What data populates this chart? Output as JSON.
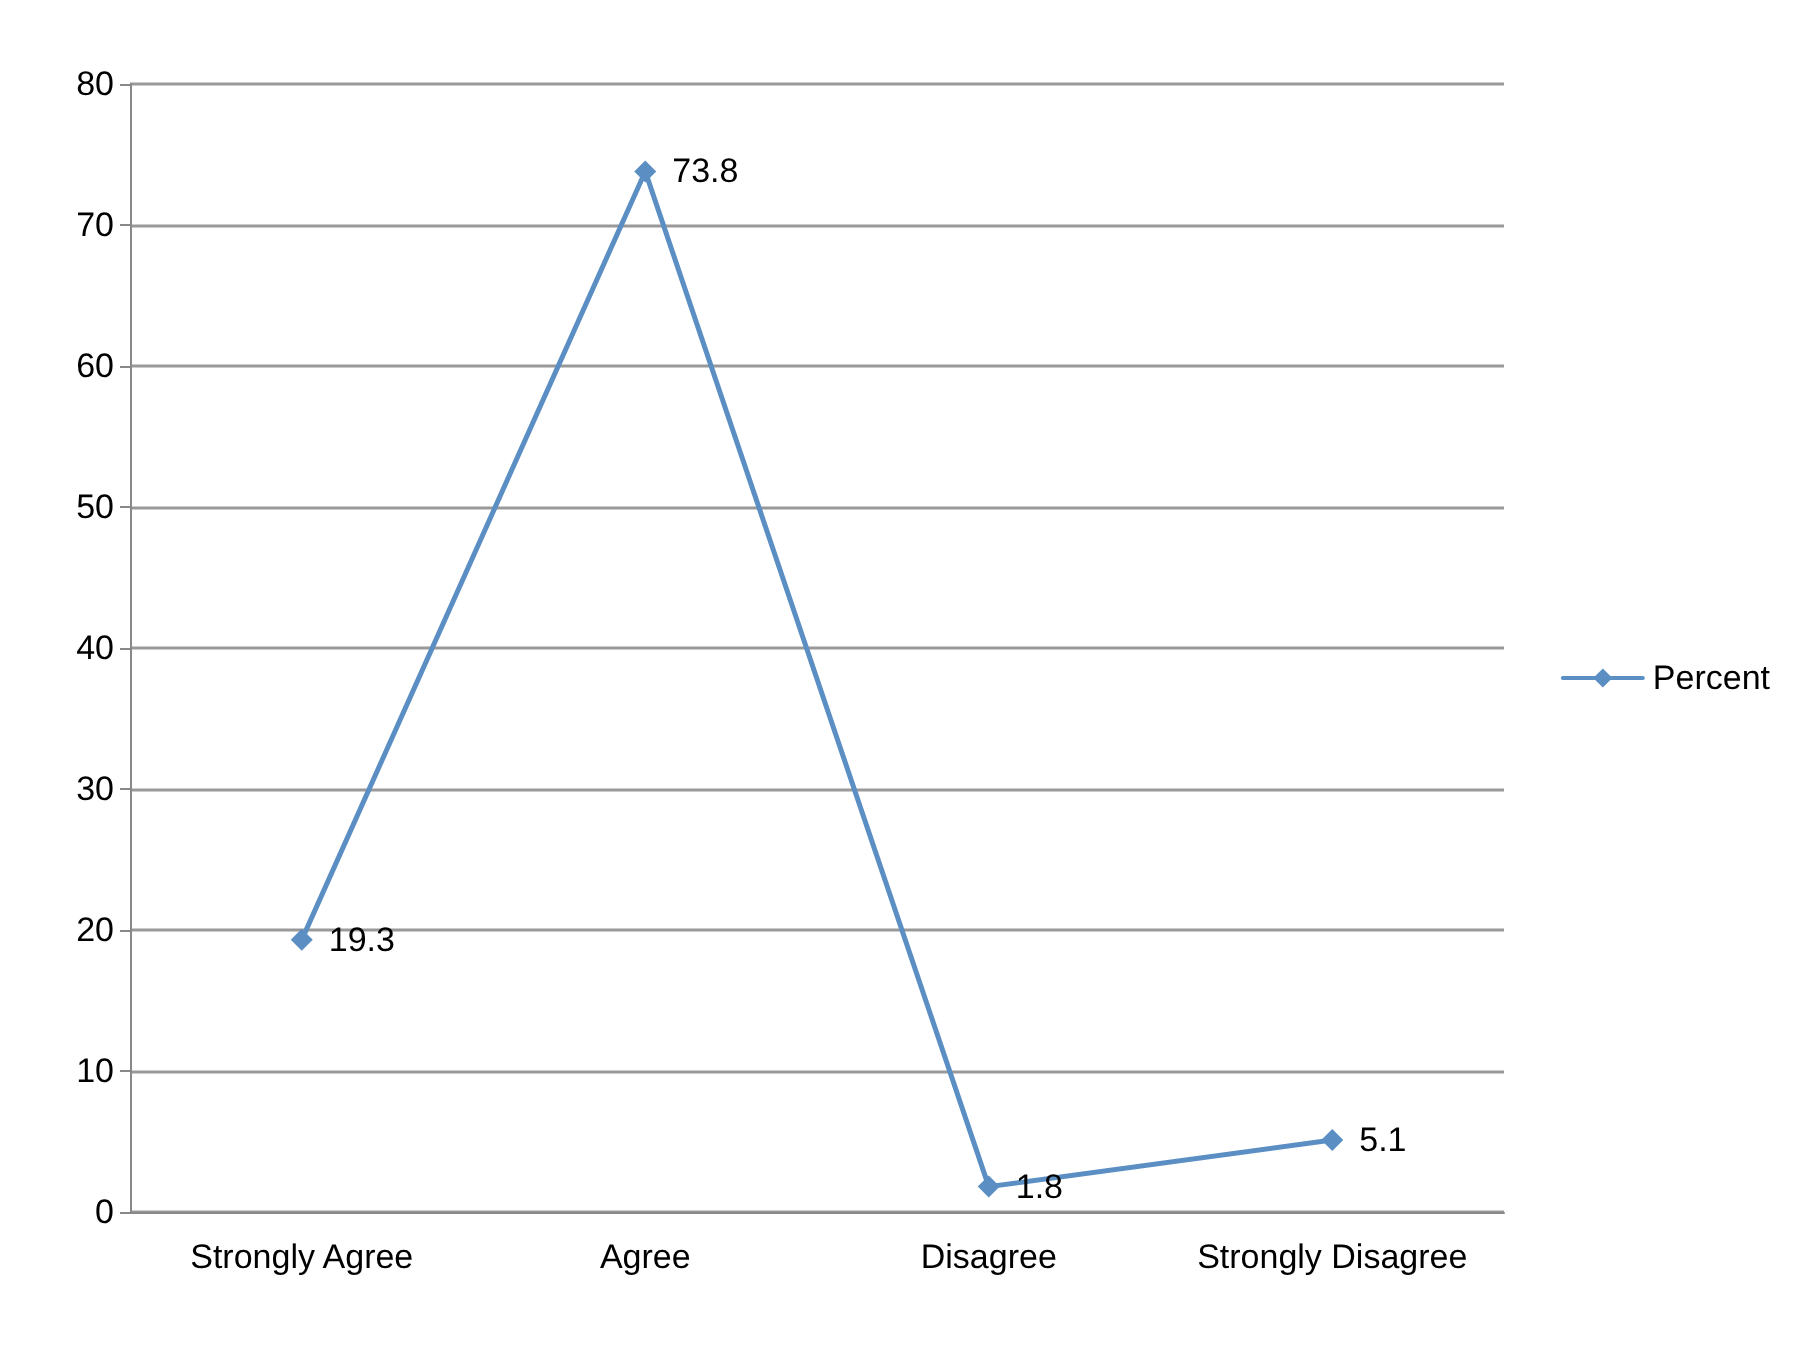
{
  "chart_data": {
    "type": "line",
    "categories": [
      "Strongly Agree",
      "Agree",
      "Disagree",
      "Strongly Disagree"
    ],
    "series": [
      {
        "name": "Percent",
        "color": "#5b8fc4",
        "values": [
          19.3,
          73.8,
          1.8,
          5.1
        ]
      }
    ],
    "ylim": [
      0,
      80
    ],
    "yticks": [
      0,
      10,
      20,
      30,
      40,
      50,
      60,
      70,
      80
    ],
    "grid": "y",
    "legend": "right",
    "marker": "diamond",
    "line_style": "solid",
    "data_labels": true
  }
}
